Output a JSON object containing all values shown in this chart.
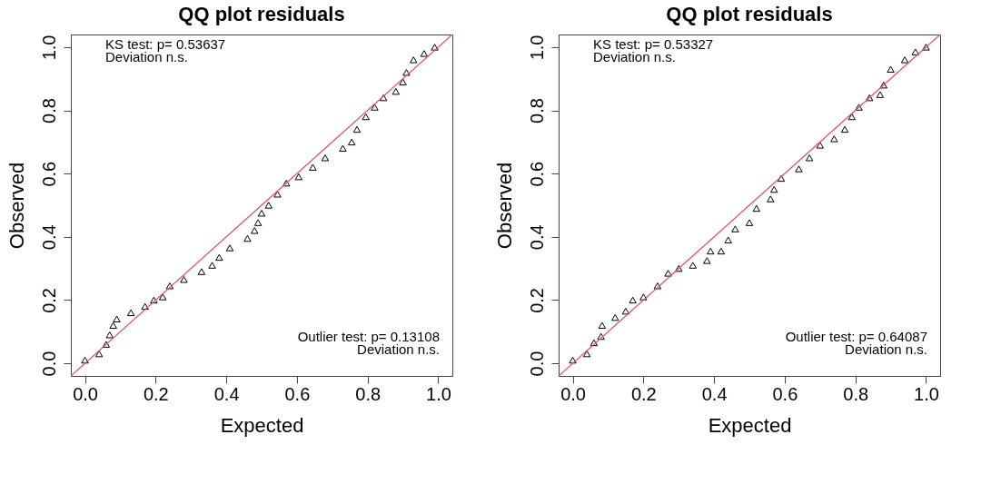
{
  "chart_data": [
    {
      "type": "scatter",
      "title": "QQ plot residuals",
      "xlabel": "Expected",
      "ylabel": "Observed",
      "marker": "triangle",
      "grid": false,
      "xlim": [
        -0.04,
        1.04
      ],
      "ylim": [
        -0.04,
        1.04
      ],
      "xticks": [
        {
          "value": 0,
          "label": "0.0"
        },
        {
          "value": 0.2,
          "label": "0.2"
        },
        {
          "value": 0.4,
          "label": "0.4"
        },
        {
          "value": 0.6,
          "label": "0.6"
        },
        {
          "value": 0.8,
          "label": "0.8"
        },
        {
          "value": 1,
          "label": "1.0"
        }
      ],
      "yticks": [
        {
          "value": 0,
          "label": "0.0"
        },
        {
          "value": 0.2,
          "label": "0.2"
        },
        {
          "value": 0.4,
          "label": "0.4"
        },
        {
          "value": 0.6,
          "label": "0.6"
        },
        {
          "value": 0.8,
          "label": "0.8"
        },
        {
          "value": 1,
          "label": "1.0"
        }
      ],
      "annotations": [
        "KS test: p= 0.53637",
        "Deviation  n.s.",
        "Outlier test: p= 0.13108",
        "Deviation  n.s."
      ],
      "series": [
        {
          "color": "#000000",
          "x": [
            0,
            0.04,
            0.06,
            0.07,
            0.08,
            0.09,
            0.13,
            0.17,
            0.195,
            0.22,
            0.24,
            0.28,
            0.33,
            0.36,
            0.38,
            0.41,
            0.46,
            0.48,
            0.49,
            0.5,
            0.52,
            0.545,
            0.57,
            0.605,
            0.645,
            0.68,
            0.73,
            0.755,
            0.77,
            0.795,
            0.82,
            0.845,
            0.88,
            0.9,
            0.91,
            0.93,
            0.96,
            0.99
          ],
          "values": [
            0.01,
            0.03,
            0.06,
            0.09,
            0.12,
            0.14,
            0.16,
            0.18,
            0.2,
            0.21,
            0.245,
            0.265,
            0.29,
            0.31,
            0.335,
            0.365,
            0.395,
            0.42,
            0.445,
            0.475,
            0.5,
            0.535,
            0.57,
            0.59,
            0.62,
            0.65,
            0.68,
            0.7,
            0.74,
            0.78,
            0.81,
            0.84,
            0.86,
            0.89,
            0.92,
            0.96,
            0.98,
            1.0
          ]
        },
        {
          "type": "line",
          "marker": "none",
          "color": "#df536b",
          "x": [
            -0.04,
            1.04
          ],
          "values": [
            -0.04,
            1.04
          ]
        }
      ]
    },
    {
      "type": "scatter",
      "title": "QQ plot residuals",
      "xlabel": "Expected",
      "ylabel": "Observed",
      "marker": "triangle",
      "grid": false,
      "xlim": [
        -0.04,
        1.04
      ],
      "ylim": [
        -0.04,
        1.04
      ],
      "xticks": [
        {
          "value": 0,
          "label": "0.0"
        },
        {
          "value": 0.2,
          "label": "0.2"
        },
        {
          "value": 0.4,
          "label": "0.4"
        },
        {
          "value": 0.6,
          "label": "0.6"
        },
        {
          "value": 0.8,
          "label": "0.8"
        },
        {
          "value": 1,
          "label": "1.0"
        }
      ],
      "yticks": [
        {
          "value": 0,
          "label": "0.0"
        },
        {
          "value": 0.2,
          "label": "0.2"
        },
        {
          "value": 0.4,
          "label": "0.4"
        },
        {
          "value": 0.6,
          "label": "0.6"
        },
        {
          "value": 0.8,
          "label": "0.8"
        },
        {
          "value": 1,
          "label": "1.0"
        }
      ],
      "annotations": [
        "KS test: p= 0.53327",
        "Deviation  n.s.",
        "Outlier test: p= 0.64087",
        "Deviation  n.s."
      ],
      "series": [
        {
          "color": "#000000",
          "x": [
            0,
            0.04,
            0.06,
            0.08,
            0.083,
            0.12,
            0.15,
            0.17,
            0.2,
            0.24,
            0.27,
            0.3,
            0.34,
            0.38,
            0.39,
            0.42,
            0.44,
            0.46,
            0.5,
            0.52,
            0.56,
            0.57,
            0.59,
            0.64,
            0.67,
            0.7,
            0.74,
            0.77,
            0.79,
            0.81,
            0.84,
            0.87,
            0.88,
            0.9,
            0.94,
            0.97,
            1.0
          ],
          "values": [
            0.01,
            0.03,
            0.065,
            0.085,
            0.12,
            0.145,
            0.165,
            0.2,
            0.21,
            0.245,
            0.285,
            0.3,
            0.31,
            0.325,
            0.355,
            0.355,
            0.39,
            0.425,
            0.445,
            0.49,
            0.52,
            0.55,
            0.585,
            0.615,
            0.65,
            0.69,
            0.71,
            0.74,
            0.78,
            0.81,
            0.84,
            0.85,
            0.88,
            0.93,
            0.96,
            0.985,
            1.0
          ]
        },
        {
          "type": "line",
          "marker": "none",
          "color": "#df536b",
          "x": [
            -0.04,
            1.04
          ],
          "values": [
            -0.04,
            1.04
          ]
        }
      ]
    }
  ]
}
